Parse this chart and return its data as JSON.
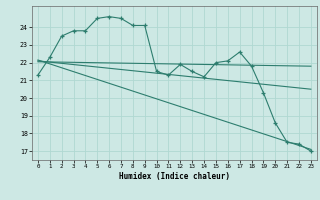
{
  "xlabel": "Humidex (Indice chaleur)",
  "background_color": "#cde8e4",
  "grid_color": "#b0d8d2",
  "line_color": "#2d7d6e",
  "xlim": [
    -0.5,
    23.5
  ],
  "ylim": [
    16.5,
    25.2
  ],
  "yticks": [
    17,
    18,
    19,
    20,
    21,
    22,
    23,
    24
  ],
  "xticks": [
    0,
    1,
    2,
    3,
    4,
    5,
    6,
    7,
    8,
    9,
    10,
    11,
    12,
    13,
    14,
    15,
    16,
    17,
    18,
    19,
    20,
    21,
    22,
    23
  ],
  "series_main": [
    21.3,
    22.3,
    23.5,
    23.8,
    23.8,
    24.5,
    24.6,
    24.5,
    24.1,
    24.1,
    21.5,
    21.3,
    21.9,
    21.5,
    21.2,
    22.0,
    22.1,
    22.6,
    21.8,
    20.3,
    18.6,
    17.5,
    17.4,
    17.0
  ],
  "trend1_x": [
    0,
    23
  ],
  "trend1_y": [
    22.1,
    20.5
  ],
  "trend2_x": [
    0,
    23
  ],
  "trend2_y": [
    22.15,
    17.1
  ],
  "trend3_x": [
    0,
    23
  ],
  "trend3_y": [
    22.05,
    21.8
  ]
}
